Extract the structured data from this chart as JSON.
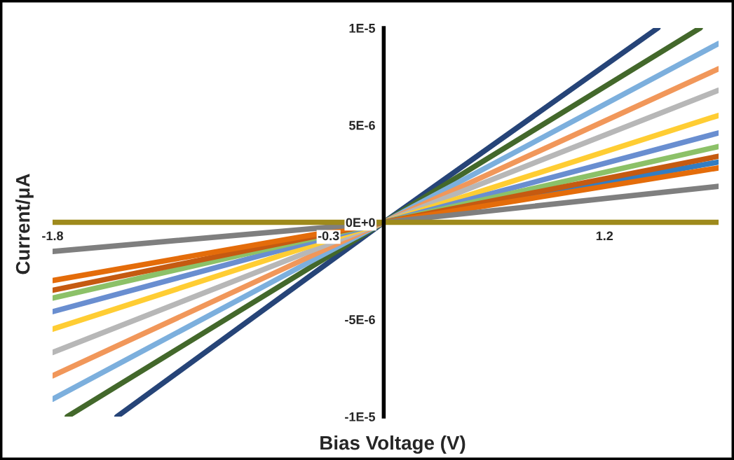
{
  "chart_data": {
    "type": "line",
    "xlabel": "Bias Voltage (V)",
    "ylabel": "Current/μA",
    "xlim": [
      -1.8,
      1.82
    ],
    "ylim": [
      -1e-05,
      1e-05
    ],
    "xticks": [
      -1.8,
      -0.3,
      1.2
    ],
    "yticks": [
      {
        "value": -1e-05,
        "label": "-1E-5"
      },
      {
        "value": -5e-06,
        "label": "-5E-6"
      },
      {
        "value": 0,
        "label": "0E+0"
      },
      {
        "value": 5e-06,
        "label": "5E-6"
      },
      {
        "value": 1e-05,
        "label": "1E-5"
      }
    ],
    "grid": false,
    "marker": "none",
    "line_style": "solid",
    "series": [
      {
        "color": "#264478",
        "x": [
          -1.45,
          0,
          1.49
        ],
        "values": [
          -1e-05,
          0,
          1e-05
        ]
      },
      {
        "color": "#43682b",
        "x": [
          -1.72,
          0,
          1.72
        ],
        "values": [
          -1e-05,
          0,
          1e-05
        ]
      },
      {
        "color": "#7cafdd",
        "x": [
          -1.8,
          0,
          1.82
        ],
        "values": [
          -9.1e-06,
          0,
          9.2e-06
        ]
      },
      {
        "color": "#f1975a",
        "x": [
          -1.8,
          0,
          1.82
        ],
        "values": [
          -7.9e-06,
          0,
          7.9e-06
        ]
      },
      {
        "color": "#b7b7b7",
        "x": [
          -1.8,
          0,
          1.82
        ],
        "values": [
          -6.7e-06,
          0,
          6.8e-06
        ]
      },
      {
        "color": "#ffcd33",
        "x": [
          -1.8,
          0,
          1.82
        ],
        "values": [
          -5.5e-06,
          0,
          5.5e-06
        ]
      },
      {
        "color": "#698ed0",
        "x": [
          -1.8,
          0,
          1.82
        ],
        "values": [
          -4.6e-06,
          0,
          4.6e-06
        ]
      },
      {
        "color": "#8cc168",
        "x": [
          -1.8,
          0,
          1.82
        ],
        "values": [
          -3.9e-06,
          0,
          3.9e-06
        ]
      },
      {
        "color": "#327dc2",
        "x": [
          0,
          1.82
        ],
        "values": [
          0,
          3.1e-06
        ]
      },
      {
        "color": "#c55a11",
        "x": [
          -1.8,
          0,
          1.82
        ],
        "values": [
          -3.5e-06,
          0,
          3.4e-06
        ]
      },
      {
        "color": "#e46c0a",
        "x": [
          -1.8,
          0,
          1.82
        ],
        "values": [
          -3e-06,
          0,
          2.8e-06
        ]
      },
      {
        "color": "#7f7f7f",
        "x": [
          -1.8,
          0,
          1.82
        ],
        "values": [
          -1.5e-06,
          0,
          1.85e-06
        ]
      },
      {
        "color": "#9e8a1c",
        "x": [
          -1.8,
          1.82
        ],
        "values": [
          0,
          0
        ]
      }
    ]
  }
}
